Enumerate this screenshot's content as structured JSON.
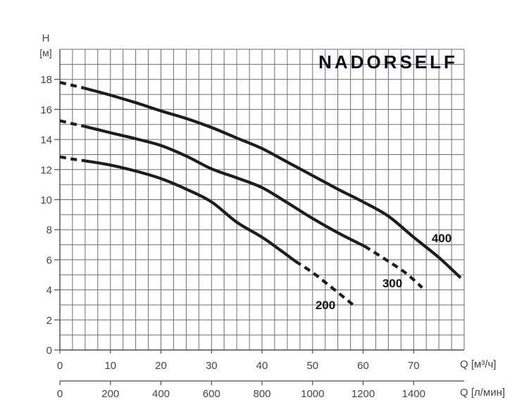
{
  "chart_data": {
    "type": "line",
    "title": "NADORSELF",
    "y_axis": {
      "label_line1": "H",
      "label_line2": "[м]",
      "min": 0,
      "max": 20,
      "grid_step": 1,
      "ticks": [
        0,
        2,
        4,
        6,
        8,
        10,
        12,
        14,
        16,
        18
      ]
    },
    "x_axis_primary": {
      "label": "Q [м³/ч]",
      "min": 0,
      "max": 80,
      "grid_step": 2.5,
      "ticks": [
        0,
        10,
        20,
        30,
        40,
        50,
        60,
        70
      ]
    },
    "x_axis_secondary": {
      "label": "Q [л/мин]",
      "units_per_primary": 20,
      "ticks": [
        0,
        200,
        400,
        600,
        800,
        1000,
        1200,
        1400
      ]
    },
    "grid": true,
    "legend_position": "inline-labels",
    "series": [
      {
        "label": "400",
        "segments": [
          {
            "style": "dashed",
            "points": [
              [
                0,
                17.8
              ],
              [
                2.5,
                17.6
              ],
              [
                4.8,
                17.42
              ]
            ]
          },
          {
            "style": "solid",
            "points": [
              [
                4.8,
                17.42
              ],
              [
                10,
                16.95
              ],
              [
                15,
                16.45
              ],
              [
                20,
                15.9
              ],
              [
                25,
                15.4
              ],
              [
                30,
                14.8
              ],
              [
                35,
                14.1
              ],
              [
                40,
                13.4
              ],
              [
                45,
                12.5
              ],
              [
                50,
                11.6
              ],
              [
                55,
                10.7
              ],
              [
                60,
                9.85
              ],
              [
                65,
                8.9
              ],
              [
                70,
                7.5
              ],
              [
                75,
                6.15
              ],
              [
                79.3,
                4.8
              ]
            ]
          }
        ]
      },
      {
        "label": "300",
        "segments": [
          {
            "style": "dashed",
            "points": [
              [
                0,
                15.25
              ],
              [
                2.5,
                15.05
              ],
              [
                4.8,
                14.88
              ]
            ]
          },
          {
            "style": "solid",
            "points": [
              [
                4.8,
                14.88
              ],
              [
                10,
                14.45
              ],
              [
                15,
                14.05
              ],
              [
                20,
                13.6
              ],
              [
                25,
                12.9
              ],
              [
                30,
                12.05
              ],
              [
                35,
                11.45
              ],
              [
                40,
                10.8
              ],
              [
                45,
                9.8
              ],
              [
                50,
                8.75
              ],
              [
                55,
                7.8
              ],
              [
                60.3,
                6.9
              ]
            ]
          },
          {
            "style": "dashed",
            "points": [
              [
                60.3,
                6.9
              ],
              [
                65,
                5.9
              ],
              [
                68.5,
                5.1
              ],
              [
                71.7,
                4.15
              ]
            ]
          }
        ]
      },
      {
        "label": "200",
        "segments": [
          {
            "style": "dashed",
            "points": [
              [
                0,
                12.85
              ],
              [
                2.5,
                12.7
              ],
              [
                5,
                12.58
              ]
            ]
          },
          {
            "style": "solid",
            "points": [
              [
                5,
                12.58
              ],
              [
                10,
                12.3
              ],
              [
                15,
                11.9
              ],
              [
                20,
                11.4
              ],
              [
                25,
                10.7
              ],
              [
                30,
                9.85
              ],
              [
                35,
                8.5
              ],
              [
                40,
                7.5
              ],
              [
                44,
                6.55
              ],
              [
                46.6,
                5.9
              ]
            ]
          },
          {
            "style": "dashed",
            "points": [
              [
                46.6,
                5.9
              ],
              [
                50,
                5.15
              ],
              [
                54,
                4.1
              ],
              [
                58.4,
                2.9
              ]
            ]
          }
        ]
      }
    ],
    "colors": {
      "curve": "#1d1d1f",
      "grid": "#6e6e6e",
      "axis": "#4e4e4e",
      "tick_text": "#454545",
      "background": "#ffffff"
    }
  }
}
